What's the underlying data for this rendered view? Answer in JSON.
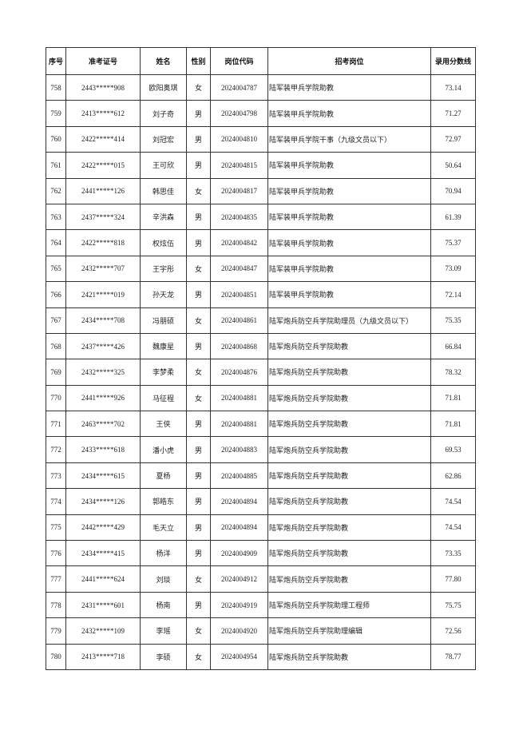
{
  "headers": [
    "序号",
    "准考证号",
    "姓名",
    "性别",
    "岗位代码",
    "招考岗位",
    "录用分数线"
  ],
  "rows": [
    [
      "758",
      "2443*****908",
      "欧阳奥琪",
      "女",
      "2024004787",
      "陆军装甲兵学院助教",
      "73.14"
    ],
    [
      "759",
      "2413*****612",
      "刘子奇",
      "男",
      "2024004798",
      "陆军装甲兵学院助教",
      "71.27"
    ],
    [
      "760",
      "2422*****414",
      "刘冠宏",
      "男",
      "2024004810",
      "陆军装甲兵学院干事（九级文员以下）",
      "72.97"
    ],
    [
      "761",
      "2422*****015",
      "王可欣",
      "男",
      "2024004815",
      "陆军装甲兵学院助教",
      "50.64"
    ],
    [
      "762",
      "2441*****126",
      "韩思佳",
      "女",
      "2024004817",
      "陆军装甲兵学院助教",
      "70.94"
    ],
    [
      "763",
      "2437*****324",
      "辛洪森",
      "男",
      "2024004835",
      "陆军装甲兵学院助教",
      "61.39"
    ],
    [
      "764",
      "2422*****818",
      "权炫伍",
      "男",
      "2024004842",
      "陆军装甲兵学院助教",
      "75.37"
    ],
    [
      "765",
      "2432*****707",
      "王宇彤",
      "女",
      "2024004847",
      "陆军装甲兵学院助教",
      "73.09"
    ],
    [
      "766",
      "2421*****019",
      "孙天龙",
      "男",
      "2024004851",
      "陆军装甲兵学院助教",
      "72.14"
    ],
    [
      "767",
      "2434*****708",
      "冯朋硕",
      "女",
      "2024004861",
      "陆军炮兵防空兵学院助理员（九级文员以下）",
      "75.35"
    ],
    [
      "768",
      "2437*****426",
      "魏康星",
      "男",
      "2024004868",
      "陆军炮兵防空兵学院助教",
      "66.84"
    ],
    [
      "769",
      "2432*****325",
      "李梦柔",
      "女",
      "2024004876",
      "陆军炮兵防空兵学院助教",
      "78.32"
    ],
    [
      "770",
      "2441*****926",
      "马征程",
      "女",
      "2024004881",
      "陆军炮兵防空兵学院助教",
      "71.81"
    ],
    [
      "771",
      "2463*****702",
      "王侠",
      "男",
      "2024004881",
      "陆军炮兵防空兵学院助教",
      "71.81"
    ],
    [
      "772",
      "2433*****618",
      "潘小虎",
      "男",
      "2024004883",
      "陆军炮兵防空兵学院助教",
      "69.53"
    ],
    [
      "773",
      "2434*****615",
      "夏杨",
      "男",
      "2024004885",
      "陆军炮兵防空兵学院助教",
      "62.86"
    ],
    [
      "774",
      "2434*****126",
      "郭皓东",
      "男",
      "2024004894",
      "陆军炮兵防空兵学院助教",
      "74.54"
    ],
    [
      "775",
      "2442*****429",
      "毛天立",
      "男",
      "2024004894",
      "陆军炮兵防空兵学院助教",
      "74.54"
    ],
    [
      "776",
      "2434*****415",
      "杨洋",
      "男",
      "2024004909",
      "陆军炮兵防空兵学院助教",
      "73.35"
    ],
    [
      "777",
      "2441*****624",
      "刘琰",
      "女",
      "2024004912",
      "陆军炮兵防空兵学院助教",
      "77.80"
    ],
    [
      "778",
      "2431*****601",
      "杨南",
      "男",
      "2024004919",
      "陆军炮兵防空兵学院助理工程师",
      "75.75"
    ],
    [
      "779",
      "2432*****109",
      "李瑶",
      "女",
      "2024004920",
      "陆军炮兵防空兵学院助理编辑",
      "72.56"
    ],
    [
      "780",
      "2413*****718",
      "李硕",
      "女",
      "2024004954",
      "陆军炮兵防空兵学院助教",
      "78.77"
    ]
  ]
}
